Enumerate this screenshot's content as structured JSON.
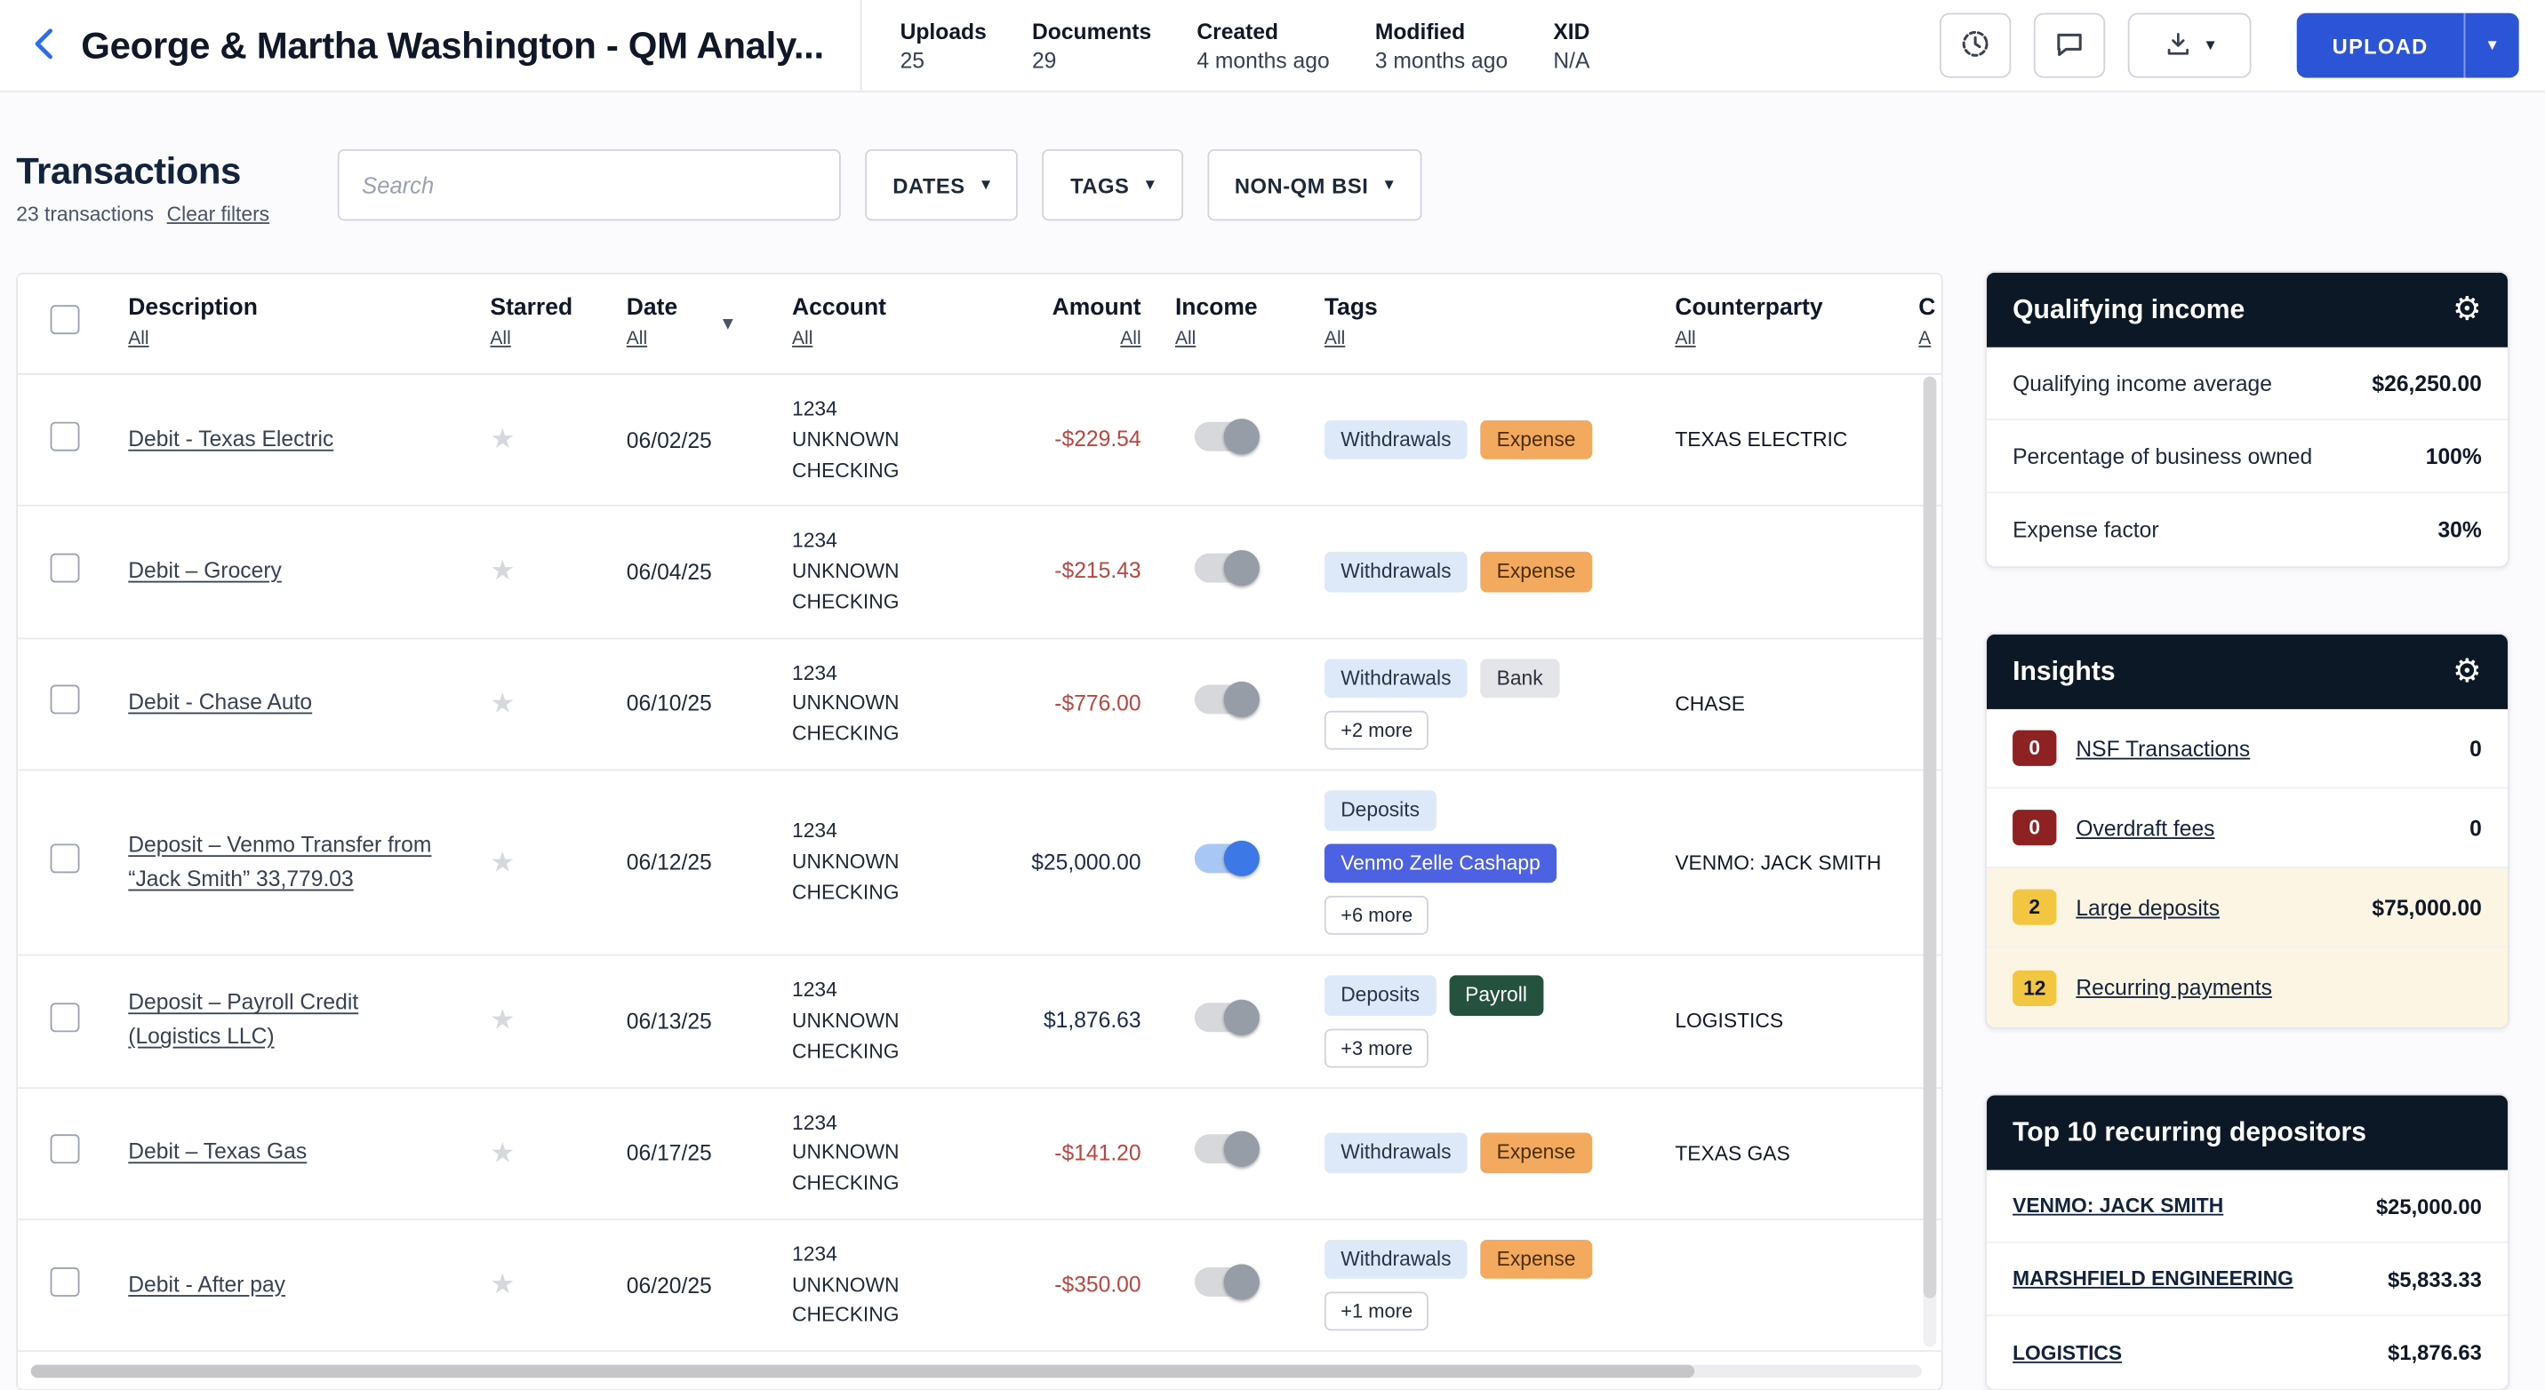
{
  "header": {
    "title": "George & Martha Washington - QM Analy...",
    "stats": [
      {
        "label": "Uploads",
        "value": "25"
      },
      {
        "label": "Documents",
        "value": "29"
      },
      {
        "label": "Created",
        "value": "4 months ago"
      },
      {
        "label": "Modified",
        "value": "3 months ago"
      },
      {
        "label": "XID",
        "value": "N/A"
      }
    ],
    "upload_label": "UPLOAD"
  },
  "toolbar": {
    "title": "Transactions",
    "count_text": "23 transactions",
    "clear_filters_label": "Clear filters",
    "search_placeholder": "Search",
    "filters": [
      {
        "label": "DATES"
      },
      {
        "label": "TAGS"
      },
      {
        "label": "NON-QM BSI"
      }
    ]
  },
  "table": {
    "columns": [
      {
        "label": "Description",
        "sub": "All"
      },
      {
        "label": "Starred",
        "sub": "All"
      },
      {
        "label": "Date",
        "sub": "All",
        "caret": true
      },
      {
        "label": "Account",
        "sub": "All"
      },
      {
        "label": "Amount",
        "sub": "All"
      },
      {
        "label": "Income",
        "sub": "All"
      },
      {
        "label": "Tags",
        "sub": "All"
      },
      {
        "label": "Counterparty",
        "sub": "All"
      },
      {
        "label": "C",
        "sub": "A"
      }
    ],
    "rows": [
      {
        "description": "Debit - Texas Electric",
        "date": "06/02/25",
        "account_lines": [
          "1234",
          "UNKNOWN",
          "CHECKING"
        ],
        "amount": "-$229.54",
        "negative": true,
        "income_on": false,
        "tags": [
          {
            "label": "Withdrawals",
            "style": "blue"
          },
          {
            "label": "Expense",
            "style": "orange"
          }
        ],
        "more": "",
        "counterparty": "TEXAS ELECTRIC"
      },
      {
        "description": "Debit – Grocery",
        "date": "06/04/25",
        "account_lines": [
          "1234",
          "UNKNOWN",
          "CHECKING"
        ],
        "amount": "-$215.43",
        "negative": true,
        "income_on": false,
        "tags": [
          {
            "label": "Withdrawals",
            "style": "blue"
          },
          {
            "label": "Expense",
            "style": "orange"
          }
        ],
        "more": "",
        "counterparty": ""
      },
      {
        "description": "Debit - Chase Auto",
        "date": "06/10/25",
        "account_lines": [
          "1234",
          "UNKNOWN",
          "CHECKING"
        ],
        "amount": "-$776.00",
        "negative": true,
        "income_on": false,
        "tags": [
          {
            "label": "Withdrawals",
            "style": "blue"
          },
          {
            "label": "Bank",
            "style": "gray"
          }
        ],
        "more": "+2 more",
        "counterparty": "CHASE"
      },
      {
        "description": "Deposit – Venmo Transfer from “Jack Smith” 33,779.03",
        "date": "06/12/25",
        "account_lines": [
          "1234",
          "UNKNOWN",
          "CHECKING"
        ],
        "amount": "$25,000.00",
        "negative": false,
        "income_on": true,
        "tags": [
          {
            "label": "Deposits",
            "style": "blue"
          },
          {
            "label": "Venmo Zelle Cashapp",
            "style": "indigo"
          }
        ],
        "more": "+6 more",
        "counterparty": "VENMO: JACK SMITH"
      },
      {
        "description": "Deposit – Payroll Credit (Logistics LLC)",
        "date": "06/13/25",
        "account_lines": [
          "1234",
          "UNKNOWN",
          "CHECKING"
        ],
        "amount": "$1,876.63",
        "negative": false,
        "income_on": false,
        "tags": [
          {
            "label": "Deposits",
            "style": "blue"
          },
          {
            "label": "Payroll",
            "style": "green"
          }
        ],
        "more": "+3 more",
        "counterparty": "LOGISTICS"
      },
      {
        "description": "Debit – Texas Gas",
        "date": "06/17/25",
        "account_lines": [
          "1234",
          "UNKNOWN",
          "CHECKING"
        ],
        "amount": "-$141.20",
        "negative": true,
        "income_on": false,
        "tags": [
          {
            "label": "Withdrawals",
            "style": "blue"
          },
          {
            "label": "Expense",
            "style": "orange"
          }
        ],
        "more": "",
        "counterparty": "TEXAS GAS"
      },
      {
        "description": "Debit - After pay",
        "date": "06/20/25",
        "account_lines": [
          "1234",
          "UNKNOWN",
          "CHECKING"
        ],
        "amount": "-$350.00",
        "negative": true,
        "income_on": false,
        "tags": [
          {
            "label": "Withdrawals",
            "style": "blue"
          },
          {
            "label": "Expense",
            "style": "orange"
          }
        ],
        "more": "+1 more",
        "counterparty": ""
      }
    ]
  },
  "sidebar": {
    "qualifying_income": {
      "title": "Qualifying income",
      "rows": [
        {
          "label": "Qualifying income average",
          "value": "$26,250.00"
        },
        {
          "label": "Percentage of business owned",
          "value": "100%"
        },
        {
          "label": "Expense factor",
          "value": "30%"
        }
      ]
    },
    "insights": {
      "title": "Insights",
      "rows": [
        {
          "count": "0",
          "style": "red",
          "label": "NSF Transactions",
          "value": "0",
          "highlight": false
        },
        {
          "count": "0",
          "style": "red",
          "label": "Overdraft fees",
          "value": "0",
          "highlight": false
        },
        {
          "count": "2",
          "style": "amber",
          "label": "Large deposits",
          "value": "$75,000.00",
          "highlight": true
        },
        {
          "count": "12",
          "style": "amber",
          "label": "Recurring payments",
          "value": "",
          "highlight": true
        }
      ]
    },
    "top_depositors": {
      "title": "Top 10 recurring depositors",
      "rows": [
        {
          "label": "VENMO: JACK SMITH",
          "value": "$25,000.00"
        },
        {
          "label": "MARSHFIELD ENGINEERING",
          "value": "$5,833.33"
        },
        {
          "label": "LOGISTICS",
          "value": "$1,876.63"
        }
      ]
    }
  },
  "colors": {
    "accent_blue": "#2b54d6",
    "dark_header": "#0d1826",
    "negative_red": "#c0443c",
    "expense_tag": "#f3aa5f",
    "payroll_tag": "#24523f",
    "venmo_tag": "#4d61e3",
    "badge_red": "#8e2121",
    "badge_amber": "#f3c642",
    "highlight_cream": "#fcf5e3"
  }
}
